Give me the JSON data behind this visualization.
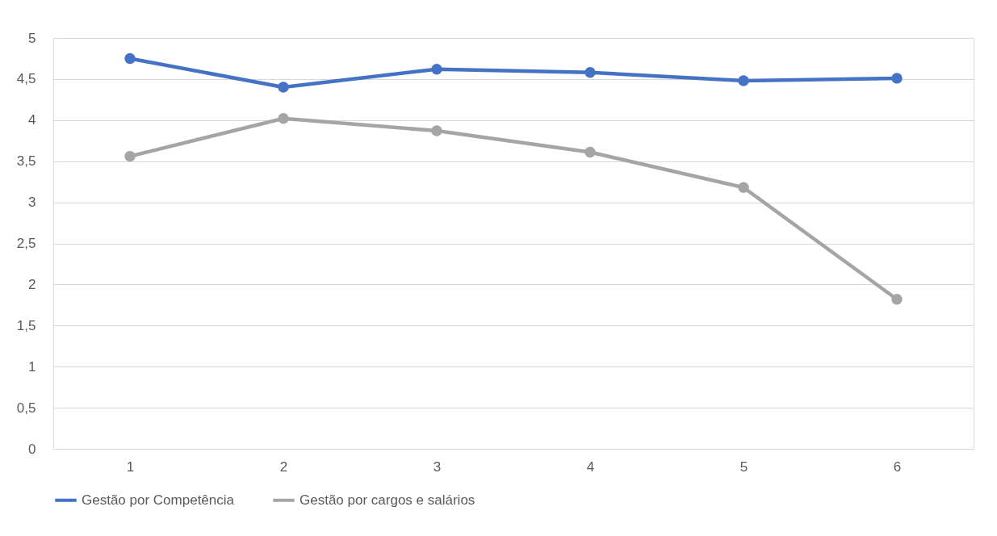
{
  "chart_data": {
    "type": "line",
    "categories": [
      "1",
      "2",
      "3",
      "4",
      "5",
      "6"
    ],
    "series": [
      {
        "name": "Gestão por Competência",
        "color": "#4472c4",
        "values": [
          4.75,
          4.4,
          4.62,
          4.58,
          4.48,
          4.51
        ]
      },
      {
        "name": "Gestão por cargos e salários",
        "color": "#a5a5a5",
        "values": [
          3.56,
          4.02,
          3.87,
          3.61,
          3.18,
          1.82
        ]
      }
    ],
    "ylim": [
      0,
      5
    ],
    "yticks": [
      0,
      {
        "value": 0.5,
        "label": "0,5"
      },
      1,
      {
        "value": 1.5,
        "label": "1,5"
      },
      2,
      {
        "value": 2.5,
        "label": "2,5"
      },
      3,
      {
        "value": 3.5,
        "label": "3,5"
      },
      4,
      {
        "value": 4.5,
        "label": "4,5"
      },
      5
    ],
    "grid": "y",
    "legend": "bottom",
    "marker": "circle",
    "line_style": "solid"
  }
}
